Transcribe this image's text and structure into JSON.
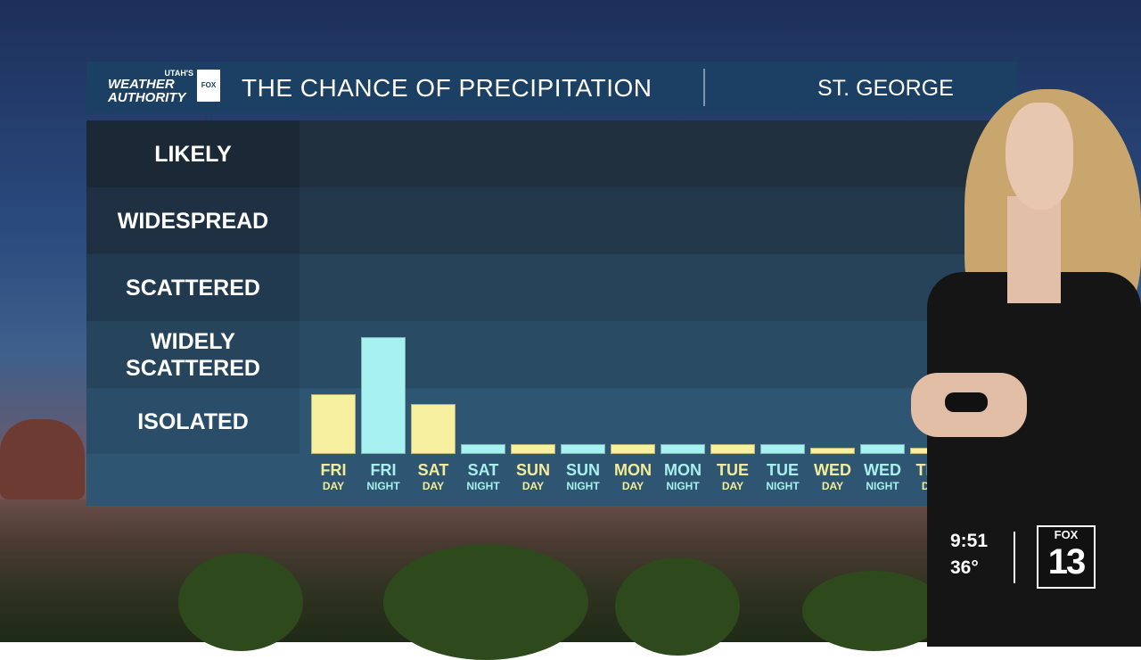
{
  "header": {
    "logo_top": "UTAH'S",
    "logo_line1": "WEATHER",
    "logo_line2": "AUTHORITY",
    "logo_badge": "FOX 13",
    "title": "THE CHANCE OF PRECIPITATION",
    "location": "ST. GEORGE"
  },
  "colors": {
    "day": "#f6f0a0",
    "night": "#a7f1f0"
  },
  "chart_data": {
    "type": "bar",
    "title": "THE CHANCE OF PRECIPITATION",
    "categories_levels": [
      "ISOLATED",
      "WIDELY SCATTERED",
      "SCATTERED",
      "WIDESPREAD",
      "LIKELY"
    ],
    "y_levels": [
      {
        "label": "LIKELY",
        "line1": "LIKELY",
        "line2": ""
      },
      {
        "label": "WIDESPREAD",
        "line1": "WIDESPREAD",
        "line2": ""
      },
      {
        "label": "SCATTERED",
        "line1": "SCATTERED",
        "line2": ""
      },
      {
        "label": "WIDELY SCATTERED",
        "line1": "WIDELY",
        "line2": "SCATTERED"
      },
      {
        "label": "ISOLATED",
        "line1": "ISOLATED",
        "line2": ""
      }
    ],
    "ylim": [
      0,
      5
    ],
    "x": [
      {
        "day": "FRI",
        "period": "DAY",
        "value": 0.9
      },
      {
        "day": "FRI",
        "period": "NIGHT",
        "value": 1.75
      },
      {
        "day": "SAT",
        "period": "DAY",
        "value": 0.75
      },
      {
        "day": "SAT",
        "period": "NIGHT",
        "value": 0.15
      },
      {
        "day": "SUN",
        "period": "DAY",
        "value": 0.15
      },
      {
        "day": "SUN",
        "period": "NIGHT",
        "value": 0.15
      },
      {
        "day": "MON",
        "period": "DAY",
        "value": 0.15
      },
      {
        "day": "MON",
        "period": "NIGHT",
        "value": 0.15
      },
      {
        "day": "TUE",
        "period": "DAY",
        "value": 0.15
      },
      {
        "day": "TUE",
        "period": "NIGHT",
        "value": 0.15
      },
      {
        "day": "WED",
        "period": "DAY",
        "value": 0.1
      },
      {
        "day": "WED",
        "period": "NIGHT",
        "value": 0.15
      },
      {
        "day": "THU",
        "period": "DAY",
        "value": 0.1
      }
    ]
  },
  "bug": {
    "time": "9:51",
    "temp": "36°",
    "station_top": "FOX",
    "station_num": "13"
  }
}
